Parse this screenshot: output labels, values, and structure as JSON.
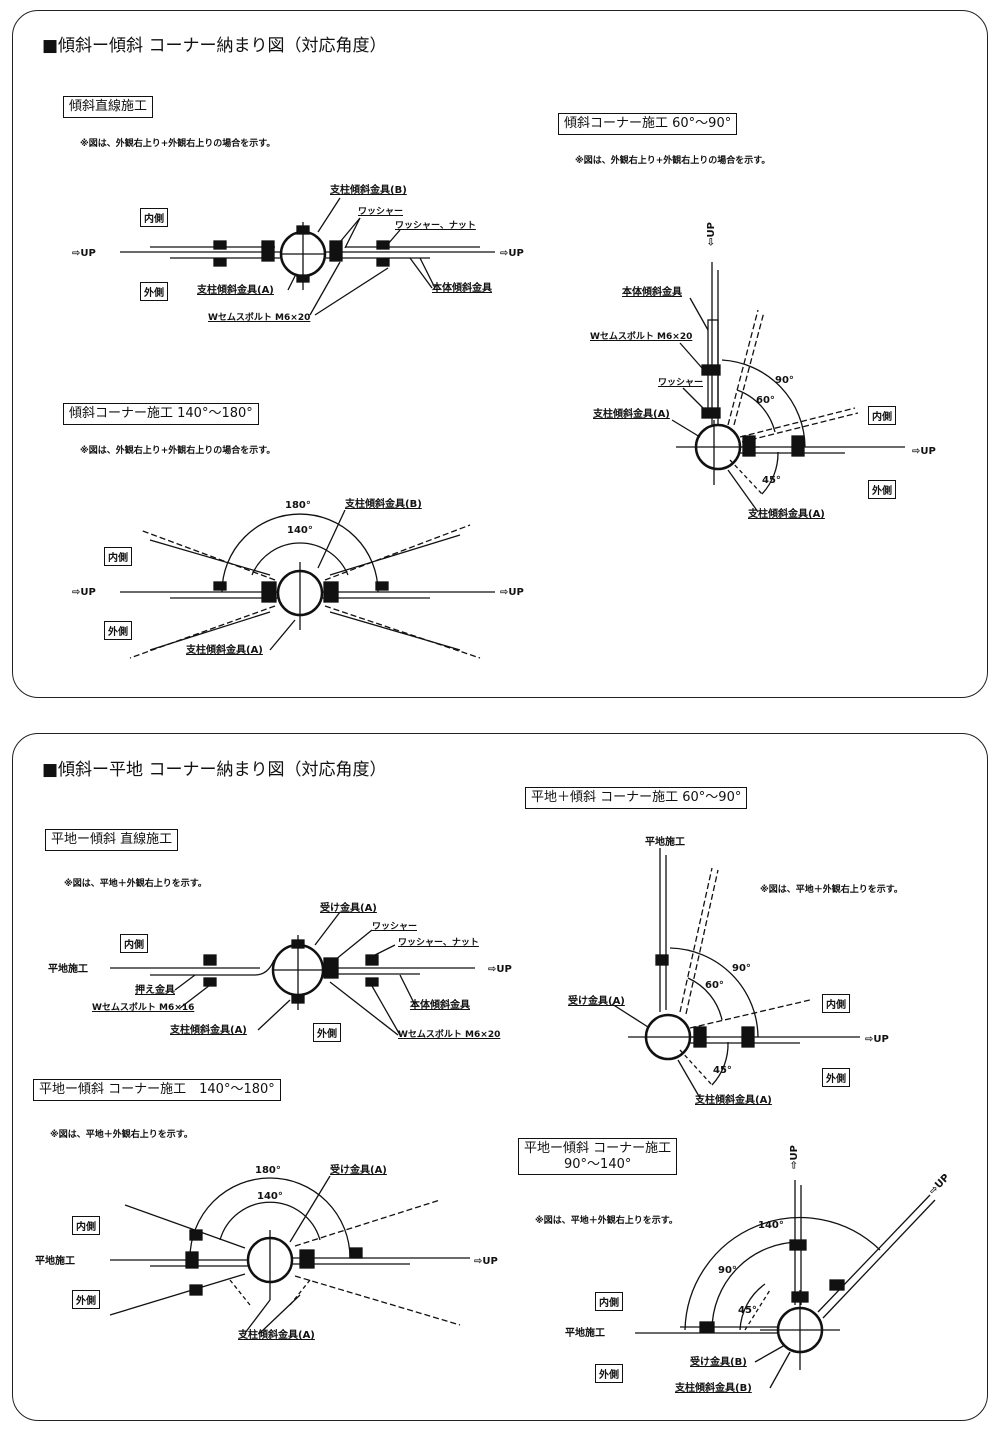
{
  "section1": {
    "title": "■傾斜ー傾斜 コーナー納まり図（対応角度）",
    "straight": {
      "heading": "傾斜直線施工",
      "note": "※図は、外観右上り+外観右上りの場合を示す。",
      "inner": "内側",
      "outer": "外側",
      "up_left": "⇨UP",
      "up_right": "⇨UP",
      "labels": [
        "支柱傾斜金具(B)",
        "ワッシャー",
        "ワッシャー、ナット",
        "支柱傾斜金具(A)",
        "本体傾斜金具",
        "Wセムスボルト M6×20"
      ]
    },
    "corner_60_90": {
      "heading": "傾斜コーナー施工 60°～90°",
      "note": "※図は、外観右上り+外観右上りの場合を示す。",
      "up_vertical": "⇦UP",
      "up_right": "⇨UP",
      "inner": "内側",
      "outer": "外側",
      "labels": [
        "本体傾斜金具",
        "Wセムスボルト M6×20",
        "ワッシャー",
        "支柱傾斜金具(A)",
        "支柱傾斜金具(A)"
      ],
      "angles": [
        "90°",
        "60°",
        "45°"
      ]
    },
    "corner_140_180": {
      "heading": "傾斜コーナー施工 140°～180°",
      "note": "※図は、外観右上り+外観右上りの場合を示す。",
      "up_left": "⇨UP",
      "up_right": "⇨UP",
      "inner": "内側",
      "outer": "外側",
      "labels": [
        "支柱傾斜金具(B)",
        "支柱傾斜金具(A)"
      ],
      "angles": [
        "180°",
        "140°"
      ]
    }
  },
  "section2": {
    "title": "■傾斜ー平地 コーナー納まり図（対応角度）",
    "straight": {
      "heading": "平地ー傾斜 直線施工",
      "note": "※図は、平地＋外観右上りを示す。",
      "inner": "内側",
      "outer": "外側",
      "flat": "平地施工",
      "up_right": "⇨UP",
      "labels": [
        "受け金具(A)",
        "ワッシャー",
        "ワッシャー、ナット",
        "押え金具",
        "Wセムスボルト M6×16",
        "支柱傾斜金具(A)",
        "本体傾斜金具",
        "Wセムスボルト M6×20"
      ]
    },
    "corner_140_180": {
      "heading": "平地ー傾斜 コーナー施工　140°～180°",
      "note": "※図は、平地＋外観右上りを示す。",
      "inner": "内側",
      "outer": "外側",
      "flat": "平地施工",
      "up_right": "⇨UP",
      "labels": [
        "受け金具(A)",
        "支柱傾斜金具(A)"
      ],
      "angles": [
        "180°",
        "140°"
      ]
    },
    "corner_60_90": {
      "heading": "平地＋傾斜 コーナー施工 60°～90°",
      "note": "※図は、平地＋外観右上りを示す。",
      "flat": "平地施工",
      "inner": "内側",
      "outer": "外側",
      "up_right": "⇨UP",
      "labels": [
        "受け金具(A)",
        "支柱傾斜金具(A)"
      ],
      "angles": [
        "90°",
        "60°",
        "45°"
      ]
    },
    "corner_90_140": {
      "heading_line1": "平地ー傾斜 コーナー施工",
      "heading_line2": "90°～140°",
      "note": "※図は、平地＋外観右上りを示す。",
      "up_vertical": "⇨UP",
      "up_diagonal": "⇨UP",
      "inner": "内側",
      "outer": "外側",
      "flat": "平地施工",
      "labels": [
        "受け金具(B)",
        "支柱傾斜金具(B)"
      ],
      "angles": [
        "140°",
        "90°",
        "45°"
      ]
    }
  }
}
